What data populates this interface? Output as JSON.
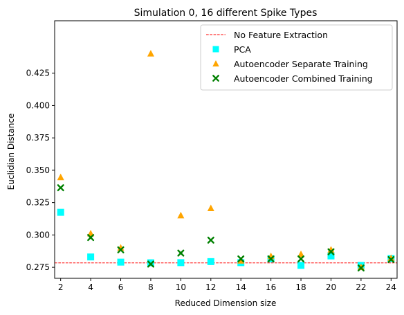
{
  "chart_data": {
    "type": "scatter",
    "title": "Simulation 0, 16 different Spike Types",
    "xlabel": "Reduced Dimension size",
    "ylabel": "Euclidian Distance",
    "xlim": [
      1.6,
      24.4
    ],
    "ylim": [
      0.2665,
      0.4655
    ],
    "xticks": [
      2,
      4,
      6,
      8,
      10,
      12,
      14,
      16,
      18,
      20,
      22,
      24
    ],
    "yticks": [
      0.275,
      0.3,
      0.325,
      0.35,
      0.375,
      0.4,
      0.425
    ],
    "ytick_labels": [
      "0.275",
      "0.300",
      "0.325",
      "0.350",
      "0.375",
      "0.400",
      "0.425"
    ],
    "grid": false,
    "legend_position": "top-right",
    "baseline": {
      "name": "No Feature Extraction",
      "value": 0.2784,
      "color": "#ff0000",
      "style": "dashed"
    },
    "series": [
      {
        "name": "PCA",
        "marker": "square",
        "color": "#00ffff",
        "x": [
          2,
          4,
          6,
          8,
          10,
          12,
          14,
          16,
          18,
          20,
          22,
          24
        ],
        "y": [
          0.3175,
          0.283,
          0.279,
          0.2785,
          0.2786,
          0.2794,
          0.2786,
          0.2815,
          0.2765,
          0.2838,
          0.2765,
          0.2818
        ]
      },
      {
        "name": "Autoencoder Separate Training",
        "marker": "triangle",
        "color": "#ffa500",
        "x": [
          2,
          4,
          6,
          8,
          10,
          12,
          14,
          16,
          18,
          20,
          22,
          24
        ],
        "y": [
          0.3445,
          0.301,
          0.29,
          0.44,
          0.315,
          0.3205,
          0.28,
          0.2835,
          0.285,
          0.2885,
          0.275,
          0.282
        ]
      },
      {
        "name": "Autoencoder Combined Training",
        "marker": "x",
        "color": "#008000",
        "x": [
          2,
          4,
          6,
          8,
          10,
          12,
          14,
          16,
          18,
          20,
          22,
          24
        ],
        "y": [
          0.3365,
          0.298,
          0.2885,
          0.2775,
          0.286,
          0.296,
          0.2815,
          0.2815,
          0.2815,
          0.287,
          0.2745,
          0.281
        ]
      }
    ]
  }
}
